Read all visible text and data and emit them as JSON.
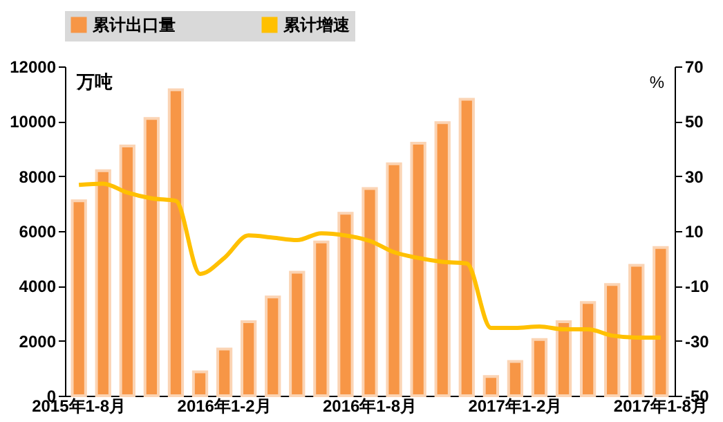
{
  "chart_data": {
    "type": "bar",
    "categories": [
      "2015年1-8月",
      null,
      null,
      null,
      null,
      null,
      "2016年1-2月",
      null,
      null,
      null,
      null,
      null,
      "2016年1-8月",
      null,
      null,
      null,
      null,
      null,
      "2017年1-2月",
      null,
      null,
      null,
      null,
      null,
      "2017年1-8月"
    ],
    "series": [
      {
        "name": "累计出口量",
        "color": "#f79646",
        "values": [
          7100,
          8200,
          9100,
          10100,
          11150,
          870,
          1700,
          2700,
          3600,
          4500,
          5600,
          6650,
          7550,
          8450,
          9200,
          9950,
          10800,
          700,
          1250,
          2050,
          2700,
          3400,
          4050,
          4750,
          5400
        ]
      },
      {
        "name": "累计增速",
        "color": "#ffc000",
        "type": "line",
        "axis": "y2",
        "values": [
          26.8,
          27.3,
          24,
          21.9,
          21,
          -5.6,
          0.2,
          8.4,
          7.6,
          6.7,
          9.2,
          8.4,
          6.4,
          2.3,
          0.2,
          -1.2,
          -1.8,
          -25.3,
          -25.3,
          -24.8,
          -25.8,
          -25.8,
          -28.1,
          -28.8,
          -28.8
        ]
      }
    ],
    "ylabel": "万吨",
    "y2label": "%",
    "ylim": [
      0,
      12000
    ],
    "yticks": [
      0,
      2000,
      4000,
      6000,
      8000,
      10000,
      12000
    ],
    "y2lim": [
      -50,
      70
    ],
    "y2ticks": [
      -50,
      -30,
      -10,
      10,
      30,
      50,
      70
    ],
    "legend": "top",
    "grid": false
  }
}
